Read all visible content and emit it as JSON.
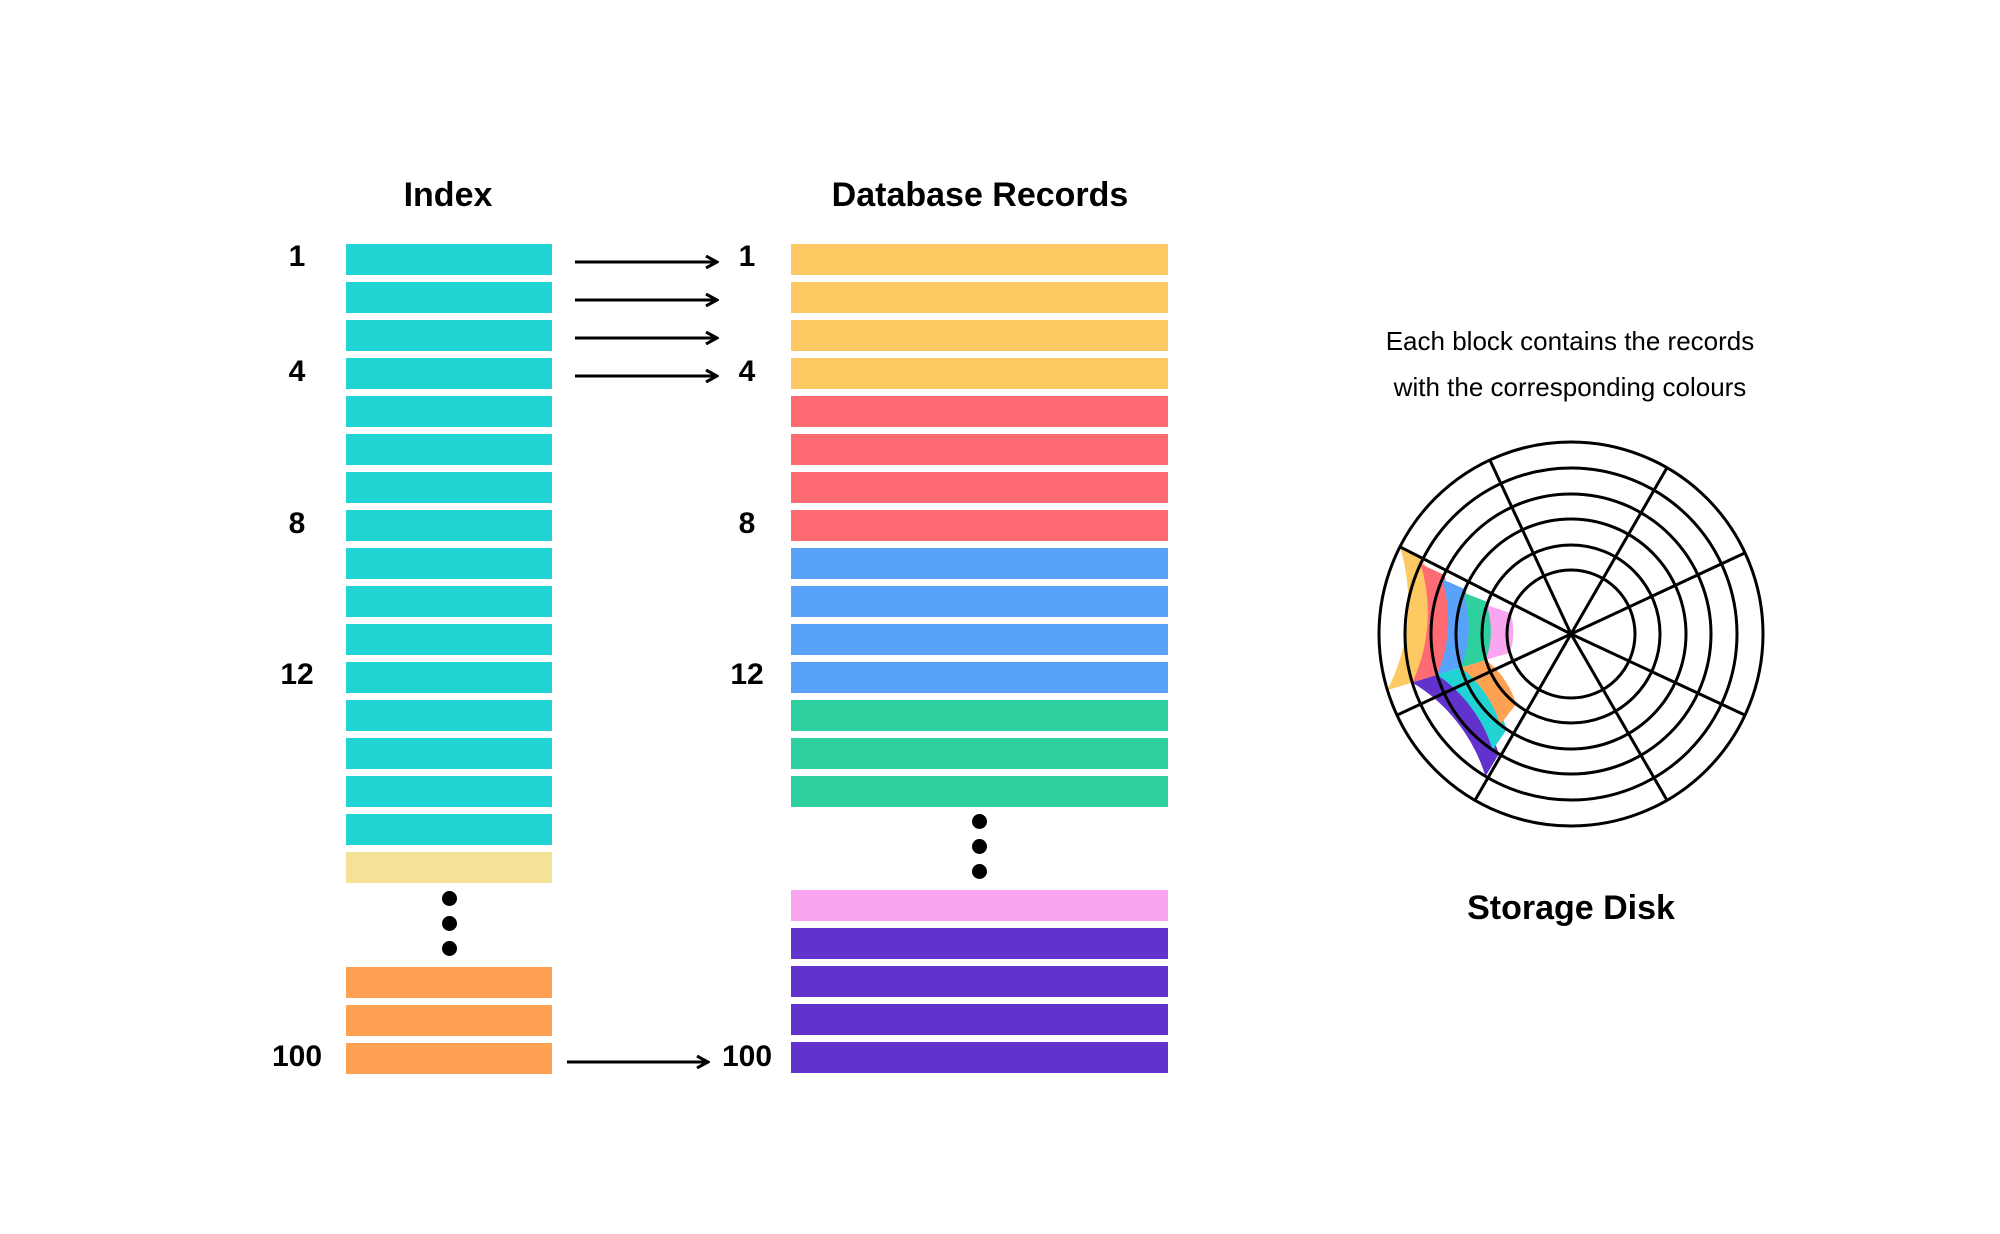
{
  "index": {
    "title": "Index",
    "row_labels": [
      "1",
      "4",
      "8",
      "12",
      "100"
    ],
    "block_colors": [
      "#22d3d3",
      "#22d3d3",
      "#22d3d3",
      "#22d3d3",
      "#22d3d3",
      "#22d3d3",
      "#22d3d3",
      "#22d3d3",
      "#22d3d3",
      "#22d3d3",
      "#22d3d3",
      "#22d3d3",
      "#22d3d3",
      "#22d3d3",
      "#22d3d3",
      "#22d3d3",
      "#f4e396",
      "#ffa152",
      "#ffa152",
      "#ffa152"
    ]
  },
  "records": {
    "title": "Database Records",
    "row_labels": [
      "1",
      "4",
      "8",
      "12",
      "100"
    ],
    "block_colors": [
      "#fdc962",
      "#fdc962",
      "#fdc962",
      "#fdc962",
      "#ff6b73",
      "#ff6b73",
      "#ff6b73",
      "#ff6b73",
      "#58a2fa",
      "#58a2fa",
      "#58a2fa",
      "#58a2fa",
      "#2ed0a0",
      "#2ed0a0",
      "#2ed0a0",
      "#f9a5f0",
      "#6232cc",
      "#6232cc",
      "#6232cc",
      "#6232cc"
    ]
  },
  "disk": {
    "caption_line1": "Each block contains the records",
    "caption_line2": "with the corresponding colours",
    "label": "Storage Disk",
    "ring_colors": [
      "#fdc962",
      "#ff6b73",
      "#58a2fa",
      "#2ed0a0",
      "#f9a5f0"
    ],
    "inner_segment_colors": [
      "#6232cc",
      "#22d3d3",
      "#ffa152"
    ]
  },
  "colors": {
    "index": "#22d3d3",
    "index_pale": "#f4e396",
    "index_orange": "#ffa152",
    "yellow": "#fdc962",
    "red": "#ff6b73",
    "blue": "#58a2fa",
    "green": "#2ed0a0",
    "pink": "#f9a5f0",
    "purple": "#6232cc"
  }
}
